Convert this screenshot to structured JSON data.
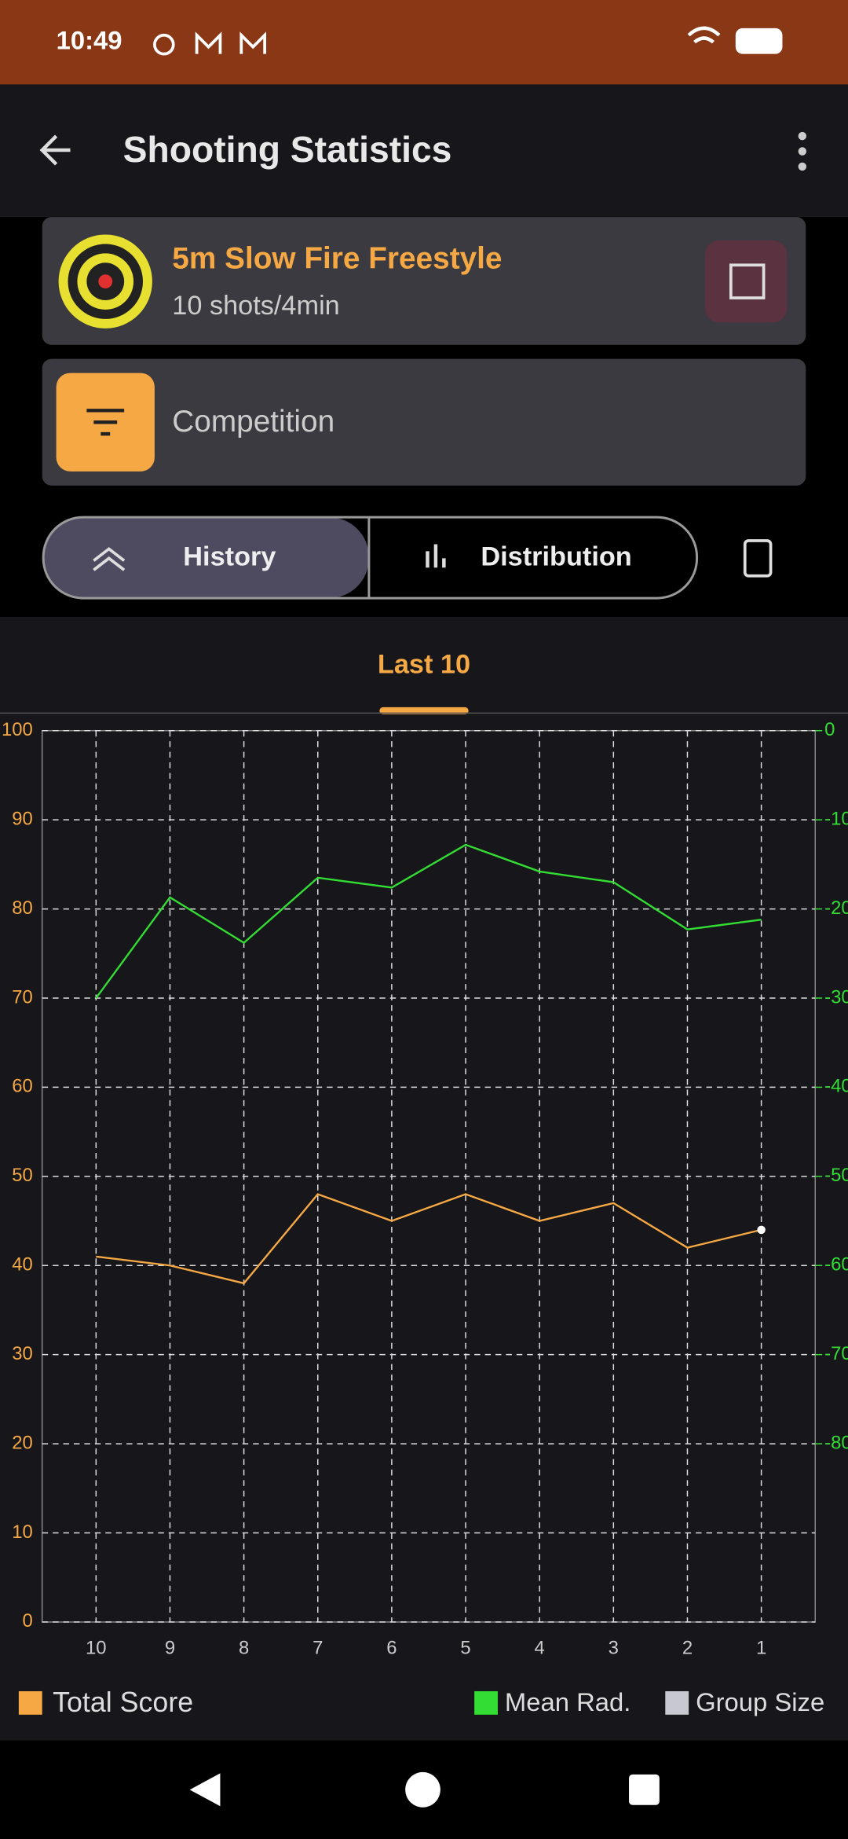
{
  "status_bar": {
    "time": "10:49"
  },
  "app_bar": {
    "title": "Shooting Statistics"
  },
  "event": {
    "name": "5m Slow Fire Freestyle",
    "details": "10 shots/4min"
  },
  "filter": {
    "label": "Competition"
  },
  "tabs": [
    "History",
    "Distribution"
  ],
  "range_tab": "Last 10",
  "chart_data": {
    "type": "line",
    "categories": [
      "10",
      "9",
      "8",
      "7",
      "6",
      "5",
      "4",
      "3",
      "2",
      "1"
    ],
    "ylim": [
      0,
      100
    ],
    "yticks": [
      0,
      10,
      20,
      30,
      40,
      50,
      60,
      70,
      80,
      90,
      100
    ],
    "y2lim": [
      -100,
      0
    ],
    "y2ticks": [
      0,
      -10,
      -20,
      -30,
      -40,
      -50,
      -60,
      -70,
      -80
    ],
    "grid": true,
    "series": [
      {
        "name": "Total Score",
        "color": "#f5a843",
        "values": [
          41,
          40,
          38,
          48,
          45,
          48,
          45,
          47,
          42,
          44
        ]
      },
      {
        "name": "Mean Rad.",
        "color": "#33dd33",
        "axis": "y2",
        "values": [
          -30,
          -18.7,
          -23.8,
          -16.5,
          -17.6,
          -12.8,
          -15.8,
          -17,
          -22.3,
          -21.2
        ]
      },
      {
        "name": "Group Size",
        "color": "#c8c8d0",
        "axis": "y2",
        "values": [
          null,
          null,
          null,
          null,
          null,
          null,
          null,
          null,
          null,
          null
        ]
      }
    ]
  }
}
